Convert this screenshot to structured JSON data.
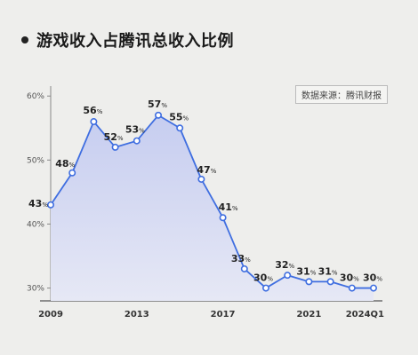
{
  "title": "游戏收入占腾讯总收入比例",
  "source": "数据来源：腾讯财报",
  "colors": {
    "line": "#3f6ee0",
    "fill_top": "#c6cdf0",
    "fill_bottom": "#e6e8f5",
    "text": "#222222"
  },
  "chart_data": {
    "type": "area",
    "title": "游戏收入占腾讯总收入比例",
    "x": [
      "2009",
      "2010",
      "2011",
      "2012",
      "2013",
      "2014",
      "2015",
      "2016",
      "2017",
      "2018",
      "2019",
      "2020",
      "2021",
      "2022",
      "2023",
      "2024Q1"
    ],
    "values": [
      43,
      48,
      56,
      52,
      53,
      57,
      55,
      47,
      41,
      33,
      30,
      32,
      31,
      31,
      30,
      30
    ],
    "value_suffix": "%",
    "ylim": [
      28,
      61
    ],
    "yticks": [
      30,
      40,
      50,
      60
    ],
    "ytick_labels": [
      "30%",
      "40%",
      "50%",
      "60%"
    ],
    "xtick_labels": [
      "2009",
      "2013",
      "2017",
      "2021",
      "2024Q1"
    ],
    "grid": false,
    "legend": "none"
  }
}
